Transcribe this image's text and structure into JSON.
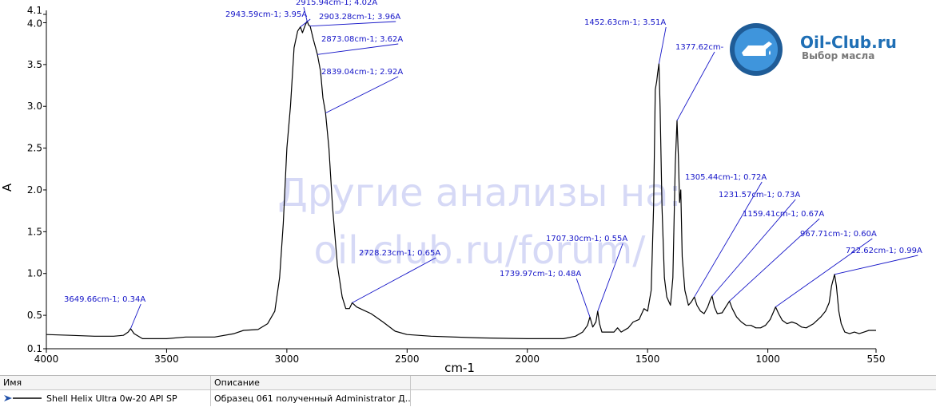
{
  "chart_data": {
    "type": "line",
    "title": "",
    "xlabel": "cm-1",
    "ylabel": "A",
    "xlim": [
      4000,
      550
    ],
    "ylim": [
      0.1,
      4.1
    ],
    "x_reversed": true,
    "grid": false,
    "x_ticks": [
      "4000",
      "3500",
      "3000",
      "2500",
      "2000",
      "1500",
      "1000",
      "550"
    ],
    "y_ticks": [
      "0.1",
      "0.5",
      "1.0",
      "1.5",
      "2.0",
      "2.5",
      "3.0",
      "3.5",
      "4.0",
      "4.1"
    ],
    "series": [
      {
        "name": "Shell Helix Ultra 0w-20 API SP",
        "color": "#000000",
        "points": [
          [
            4000,
            0.27
          ],
          [
            3900,
            0.26
          ],
          [
            3800,
            0.25
          ],
          [
            3720,
            0.25
          ],
          [
            3680,
            0.26
          ],
          [
            3660,
            0.3
          ],
          [
            3649.66,
            0.34
          ],
          [
            3635,
            0.28
          ],
          [
            3600,
            0.22
          ],
          [
            3500,
            0.22
          ],
          [
            3420,
            0.24
          ],
          [
            3300,
            0.24
          ],
          [
            3220,
            0.28
          ],
          [
            3180,
            0.32
          ],
          [
            3120,
            0.33
          ],
          [
            3080,
            0.4
          ],
          [
            3050,
            0.55
          ],
          [
            3030,
            0.95
          ],
          [
            3015,
            1.6
          ],
          [
            3000,
            2.5
          ],
          [
            2985,
            3.0
          ],
          [
            2970,
            3.7
          ],
          [
            2955,
            3.9
          ],
          [
            2943.59,
            3.95
          ],
          [
            2935,
            3.88
          ],
          [
            2925,
            3.96
          ],
          [
            2915.94,
            4.02
          ],
          [
            2909,
            3.97
          ],
          [
            2903.28,
            3.96
          ],
          [
            2890,
            3.8
          ],
          [
            2873.08,
            3.62
          ],
          [
            2860,
            3.42
          ],
          [
            2850,
            3.1
          ],
          [
            2839.04,
            2.92
          ],
          [
            2825,
            2.5
          ],
          [
            2810,
            1.8
          ],
          [
            2790,
            1.1
          ],
          [
            2770,
            0.72
          ],
          [
            2755,
            0.58
          ],
          [
            2740,
            0.58
          ],
          [
            2728.23,
            0.65
          ],
          [
            2710,
            0.6
          ],
          [
            2680,
            0.56
          ],
          [
            2650,
            0.52
          ],
          [
            2600,
            0.42
          ],
          [
            2550,
            0.31
          ],
          [
            2500,
            0.27
          ],
          [
            2400,
            0.25
          ],
          [
            2200,
            0.23
          ],
          [
            2000,
            0.22
          ],
          [
            1850,
            0.22
          ],
          [
            1800,
            0.25
          ],
          [
            1770,
            0.3
          ],
          [
            1750,
            0.38
          ],
          [
            1739.97,
            0.48
          ],
          [
            1728,
            0.36
          ],
          [
            1715,
            0.42
          ],
          [
            1707.3,
            0.55
          ],
          [
            1700,
            0.4
          ],
          [
            1690,
            0.3
          ],
          [
            1640,
            0.3
          ],
          [
            1625,
            0.35
          ],
          [
            1610,
            0.3
          ],
          [
            1580,
            0.35
          ],
          [
            1560,
            0.42
          ],
          [
            1535,
            0.45
          ],
          [
            1515,
            0.58
          ],
          [
            1500,
            0.55
          ],
          [
            1485,
            0.8
          ],
          [
            1475,
            1.8
          ],
          [
            1468,
            3.2
          ],
          [
            1462,
            3.3
          ],
          [
            1458,
            3.4
          ],
          [
            1452.63,
            3.51
          ],
          [
            1448,
            3.0
          ],
          [
            1440,
            1.8
          ],
          [
            1430,
            0.95
          ],
          [
            1420,
            0.72
          ],
          [
            1405,
            0.62
          ],
          [
            1395,
            0.95
          ],
          [
            1385,
            2.3
          ],
          [
            1377.62,
            2.83
          ],
          [
            1372,
            2.4
          ],
          [
            1367,
            1.85
          ],
          [
            1362,
            2.0
          ],
          [
            1356,
            1.2
          ],
          [
            1345,
            0.8
          ],
          [
            1330,
            0.62
          ],
          [
            1318,
            0.66
          ],
          [
            1305.44,
            0.72
          ],
          [
            1295,
            0.62
          ],
          [
            1280,
            0.55
          ],
          [
            1265,
            0.52
          ],
          [
            1250,
            0.6
          ],
          [
            1240,
            0.68
          ],
          [
            1231.57,
            0.73
          ],
          [
            1222,
            0.6
          ],
          [
            1210,
            0.52
          ],
          [
            1190,
            0.53
          ],
          [
            1175,
            0.6
          ],
          [
            1159.41,
            0.67
          ],
          [
            1148,
            0.58
          ],
          [
            1130,
            0.48
          ],
          [
            1110,
            0.42
          ],
          [
            1090,
            0.38
          ],
          [
            1070,
            0.38
          ],
          [
            1050,
            0.35
          ],
          [
            1030,
            0.35
          ],
          [
            1010,
            0.38
          ],
          [
            990,
            0.45
          ],
          [
            975,
            0.55
          ],
          [
            967.71,
            0.6
          ],
          [
            955,
            0.52
          ],
          [
            940,
            0.44
          ],
          [
            920,
            0.4
          ],
          [
            900,
            0.42
          ],
          [
            880,
            0.4
          ],
          [
            860,
            0.36
          ],
          [
            840,
            0.35
          ],
          [
            810,
            0.4
          ],
          [
            780,
            0.48
          ],
          [
            760,
            0.55
          ],
          [
            745,
            0.65
          ],
          [
            735,
            0.85
          ],
          [
            722.62,
            0.99
          ],
          [
            715,
            0.85
          ],
          [
            705,
            0.55
          ],
          [
            695,
            0.4
          ],
          [
            680,
            0.3
          ],
          [
            660,
            0.28
          ],
          [
            640,
            0.3
          ],
          [
            620,
            0.28
          ],
          [
            600,
            0.3
          ],
          [
            580,
            0.32
          ],
          [
            560,
            0.32
          ],
          [
            550,
            0.32
          ]
        ]
      }
    ],
    "annotations": [
      {
        "text": "3649.66cm-1; 0.34A",
        "x": 3649.66,
        "y": 0.34
      },
      {
        "text": "2943.59cm-1; 3.95A",
        "x": 2943.59,
        "y": 3.95
      },
      {
        "text": "2915.94cm-1; 4.02A",
        "x": 2915.94,
        "y": 4.02
      },
      {
        "text": "2903.28cm-1; 3.96A",
        "x": 2903.28,
        "y": 3.96
      },
      {
        "text": "2873.08cm-1; 3.62A",
        "x": 2873.08,
        "y": 3.62
      },
      {
        "text": "2839.04cm-1; 2.92A",
        "x": 2839.04,
        "y": 2.92
      },
      {
        "text": "2728.23cm-1; 0.65A",
        "x": 2728.23,
        "y": 0.65
      },
      {
        "text": "1739.97cm-1; 0.48A",
        "x": 1739.97,
        "y": 0.48
      },
      {
        "text": "1707.30cm-1; 0.55A",
        "x": 1707.3,
        "y": 0.55
      },
      {
        "text": "1452.63cm-1; 3.51A",
        "x": 1452.63,
        "y": 3.51
      },
      {
        "text": "1377.62cm-",
        "x": 1377.62,
        "y": 2.83
      },
      {
        "text": "1305.44cm-1; 0.72A",
        "x": 1305.44,
        "y": 0.72
      },
      {
        "text": "1231.57cm-1; 0.73A",
        "x": 1231.57,
        "y": 0.73
      },
      {
        "text": "1159.41cm-1; 0.67A",
        "x": 1159.41,
        "y": 0.67
      },
      {
        "text": "967.71cm-1; 0.60A",
        "x": 967.71,
        "y": 0.6
      },
      {
        "text": "722.62cm-1; 0.99A",
        "x": 722.62,
        "y": 0.99
      }
    ]
  },
  "watermark": {
    "line1": "Другие анализы на:",
    "line2": "oil-club.ru/forum/"
  },
  "logo": {
    "name": "Oil-Club.ru",
    "tagline": "Выбор масла",
    "icon": "oil-can-icon",
    "color": "#2f7fc4"
  },
  "legend": {
    "col_name": "Имя",
    "col_desc": "Описание",
    "rows": [
      {
        "name": "Shell Helix Ultra 0w-20 API SP",
        "desc": "Образец 061 полученный Administrator Д...",
        "icon": "arrow-right-icon"
      }
    ]
  },
  "colors": {
    "annotation": "#1515c8",
    "curve": "#000000",
    "watermark": "#c9cdf3"
  }
}
